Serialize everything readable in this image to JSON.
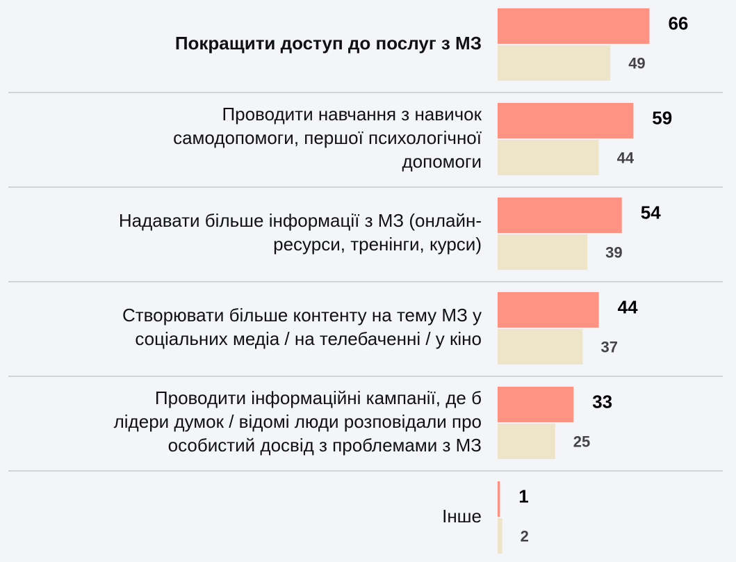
{
  "chart_data": {
    "type": "bar",
    "orientation": "horizontal",
    "categories": [
      [
        "Покращити доступ до послуг з МЗ"
      ],
      [
        "Проводити навчання з навичок",
        "самодопомоги, першої психологічної",
        "допомоги"
      ],
      [
        "Надавати більше інформації з МЗ (онлайн-",
        "ресурси, тренінги, курси)"
      ],
      [
        "Створювати більше контенту на тему МЗ у",
        "соціальних медіа / на телебаченні / у кіно"
      ],
      [
        "Проводити інформаційні кампанії, де б",
        "лідери думок / відомі люди розповідали про",
        "особистий досвід з проблемами з МЗ"
      ],
      [
        "Інше"
      ]
    ],
    "series": [
      {
        "color": "#ff9282",
        "values": [
          66,
          59,
          54,
          44,
          33,
          1
        ]
      },
      {
        "color": "#eee5c9",
        "values": [
          49,
          44,
          39,
          37,
          25,
          2
        ]
      }
    ]
  }
}
